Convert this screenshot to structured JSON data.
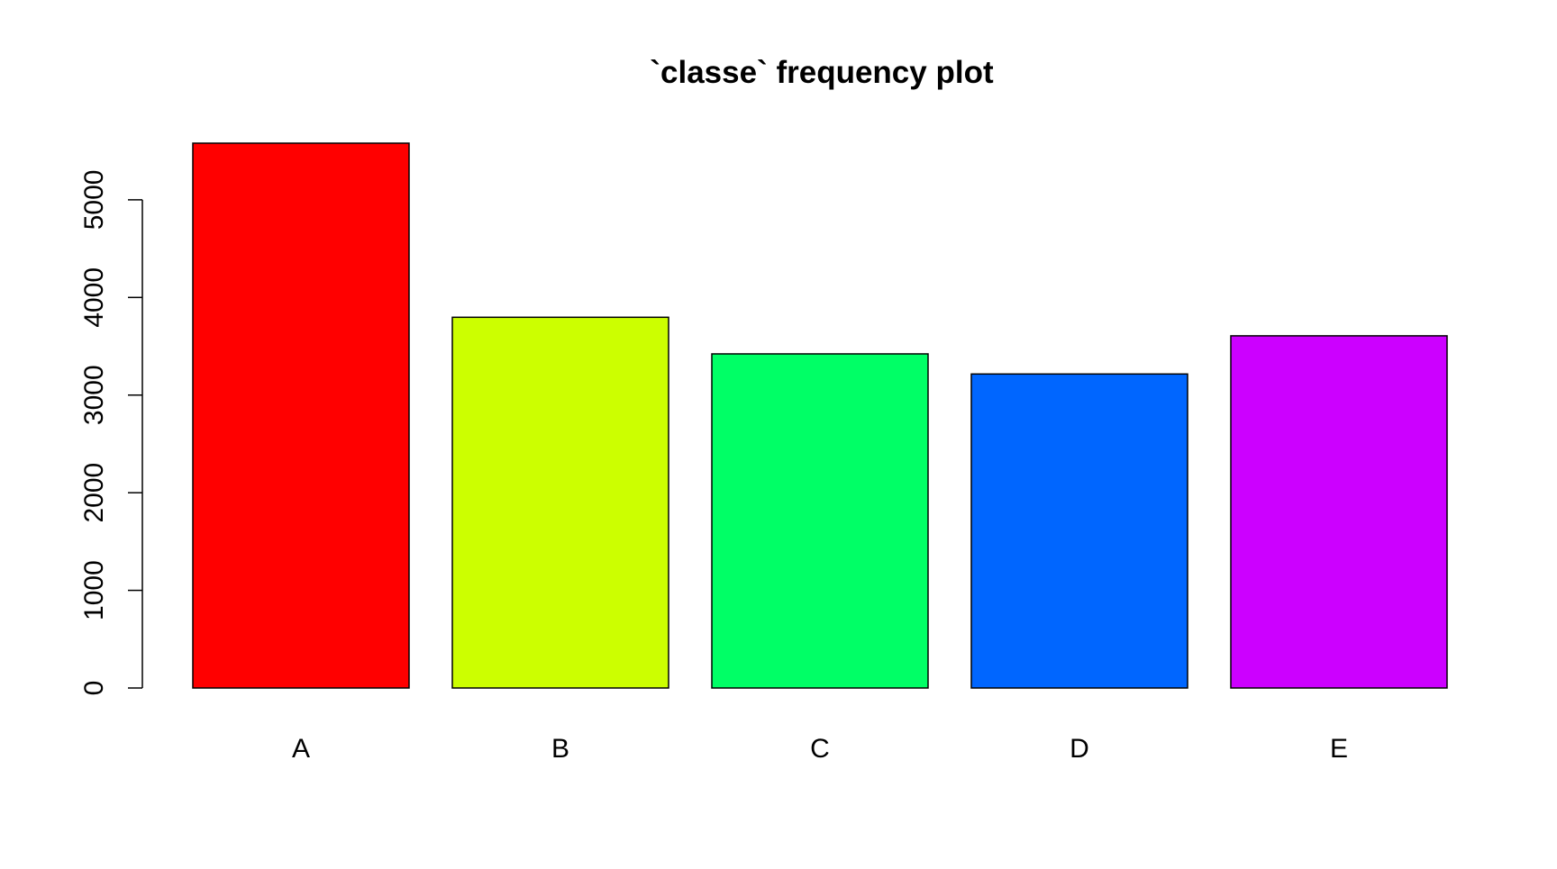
{
  "chart_data": {
    "type": "bar",
    "title": "`classe` frequency plot",
    "xlabel": "",
    "ylabel": "",
    "categories": [
      "A",
      "B",
      "C",
      "D",
      "E"
    ],
    "values": [
      5580,
      3797,
      3422,
      3216,
      3607
    ],
    "colors": [
      "#FF0000",
      "#CCFF00",
      "#00FF66",
      "#0066FF",
      "#CC00FF"
    ],
    "ylim": [
      0,
      5580
    ],
    "yticks": [
      0,
      1000,
      2000,
      3000,
      4000,
      5000
    ],
    "grid": false,
    "legend": "none"
  }
}
